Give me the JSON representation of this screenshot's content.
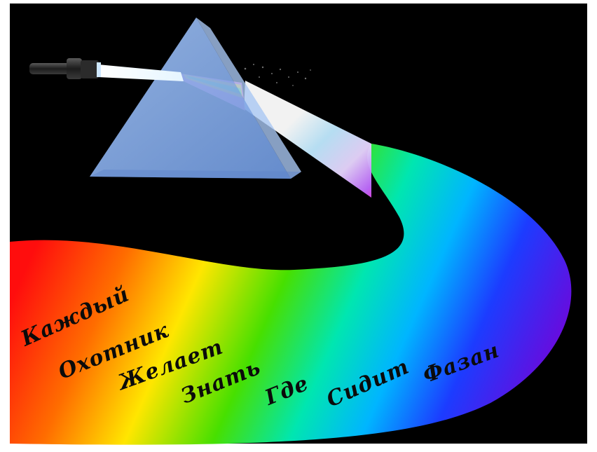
{
  "scene": {
    "frame_color": "#ffffff",
    "background_color": "#000000",
    "prism_color": "#7aa6e6",
    "prism_highlight_color": "#a9c7f3",
    "flashlight_body_color": "#2a2a2a",
    "beam_color": "#e8f6ff",
    "band_colors": [
      "#ff1010",
      "#ff7a00",
      "#ffe600",
      "#47e000",
      "#00e6a8",
      "#00b7ff",
      "#1f3cff",
      "#7a00d6"
    ]
  },
  "mnemonic": {
    "words": [
      "Каждый",
      "Охотник",
      "Желает",
      "Знать",
      "Где",
      "Сидит",
      "Фазан"
    ]
  }
}
